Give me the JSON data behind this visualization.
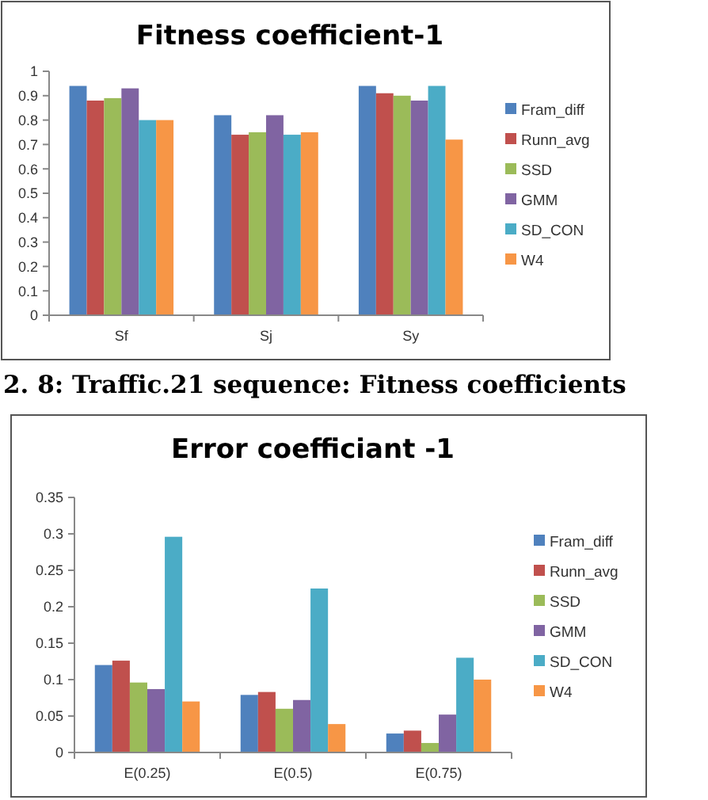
{
  "chart_data": [
    {
      "type": "bar",
      "title": "Fitness coefficient-1",
      "categories": [
        "Sf",
        "Sj",
        "Sy"
      ],
      "ylim": [
        0,
        1
      ],
      "yticks": [
        0,
        0.1,
        0.2,
        0.3,
        0.4,
        0.5,
        0.6,
        0.7,
        0.8,
        0.9,
        1
      ],
      "legend": "right",
      "grid": false,
      "annotations": [
        "2. 8: Traffic.21 sequence: Fitness coefficients"
      ],
      "series": [
        {
          "name": "Fram_diff",
          "color": "#4f81bd",
          "values": [
            0.94,
            0.82,
            0.94
          ]
        },
        {
          "name": "Runn_avg",
          "color": "#c0504d",
          "values": [
            0.88,
            0.74,
            0.91
          ]
        },
        {
          "name": "SSD",
          "color": "#9bbb59",
          "values": [
            0.89,
            0.75,
            0.9
          ]
        },
        {
          "name": "GMM",
          "color": "#8064a2",
          "values": [
            0.93,
            0.82,
            0.88
          ]
        },
        {
          "name": "SD_CON",
          "color": "#4bacc6",
          "values": [
            0.8,
            0.74,
            0.94
          ]
        },
        {
          "name": "W4",
          "color": "#f79646",
          "values": [
            0.8,
            0.75,
            0.72
          ]
        }
      ]
    },
    {
      "type": "bar",
      "title": "Error coefficiant -1",
      "categories": [
        "E(0.25)",
        "E(0.5)",
        "E(0.75)"
      ],
      "ylim": [
        0,
        0.35
      ],
      "yticks": [
        0,
        0.05,
        0.1,
        0.15,
        0.2,
        0.25,
        0.3,
        0.35
      ],
      "legend": "right",
      "grid": false,
      "series": [
        {
          "name": "Fram_diff",
          "color": "#4f81bd",
          "values": [
            0.12,
            0.079,
            0.026
          ]
        },
        {
          "name": "Runn_avg",
          "color": "#c0504d",
          "values": [
            0.126,
            0.083,
            0.03
          ]
        },
        {
          "name": "SSD",
          "color": "#9bbb59",
          "values": [
            0.096,
            0.06,
            0.013
          ]
        },
        {
          "name": "GMM",
          "color": "#8064a2",
          "values": [
            0.087,
            0.072,
            0.052
          ]
        },
        {
          "name": "SD_CON",
          "color": "#4bacc6",
          "values": [
            0.296,
            0.225,
            0.13
          ]
        },
        {
          "name": "W4",
          "color": "#f79646",
          "values": [
            0.07,
            0.039,
            0.1
          ]
        }
      ]
    }
  ]
}
